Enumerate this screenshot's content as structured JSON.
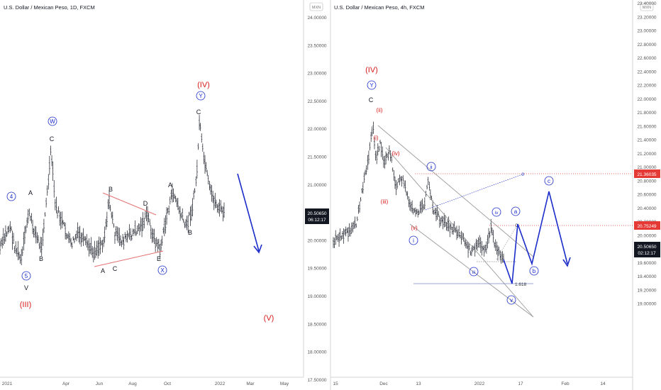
{
  "left_chart": {
    "title": "U.S. Dollar / Mexican Peso, 1D, FXCM",
    "y_ticks": [
      "24.00000",
      "23.50000",
      "23.00000",
      "22.50000",
      "22.00000",
      "21.50000",
      "21.00000",
      "20.50000",
      "20.00000",
      "19.50000",
      "19.00000",
      "18.50000",
      "18.00000",
      "17.50000"
    ],
    "x_ticks": [
      "2021",
      "Apr",
      "Jun",
      "Aug",
      "Oct",
      "2022",
      "Mar",
      "May"
    ],
    "price_badge": {
      "value": "20.50650",
      "time": "06:12:17"
    },
    "currency_badge": "MXN",
    "labels": {
      "w4": "4",
      "w5": "5",
      "wV": "V",
      "wIII": "(III)",
      "A1": "A",
      "B1": "B",
      "C1": "C",
      "W": "W",
      "B2": "B",
      "D": "D",
      "A2": "A",
      "C2": "C",
      "E": "E",
      "X": "X",
      "A3": "A",
      "B3": "B",
      "C3": "C",
      "Y": "Y",
      "IV": "(IV)",
      "V": "(V)"
    }
  },
  "right_chart": {
    "title": "U.S. Dollar / Mexican Peso, 4h, FXCM",
    "y_ticks": [
      "23.40000",
      "23.20000",
      "23.00000",
      "22.80000",
      "22.60000",
      "22.40000",
      "22.20000",
      "22.00000",
      "21.80000",
      "21.60000",
      "21.40000",
      "21.20000",
      "21.00000",
      "20.80000",
      "20.60000",
      "20.40000",
      "20.20000",
      "20.00000",
      "19.80000",
      "19.60000",
      "19.40000",
      "19.20000",
      "19.00000"
    ],
    "x_ticks": [
      "15",
      "Dec",
      "13",
      "2022",
      "17",
      "Feb",
      "14"
    ],
    "currency_badge": "MXN",
    "price_badges": [
      {
        "value": "21.36035",
        "color": "#e53935"
      },
      {
        "value": "20.75249",
        "color": "#e53935"
      },
      {
        "value": "20.50650",
        "time": "02:12:17",
        "color": "#131722"
      }
    ],
    "level_labels": {
      "zero1": "0",
      "zero2": "0",
      "fib": "1.618"
    },
    "labels": {
      "IV": "(IV)",
      "Y": "Y",
      "C": "C",
      "ii_r": "(ii)",
      "i_r": "(i)",
      "iii_r": "(iii)",
      "iv_r": "(iv)",
      "v_r": "(v)",
      "i": "i",
      "ii": "ii",
      "iii": "iii",
      "iv": "iv",
      "v": "v",
      "a": "a",
      "b": "b",
      "c": "c"
    }
  },
  "colors": {
    "red": "#d81b1b",
    "blue": "#1b2cc9",
    "bars": "#131722",
    "trend": "#e57373",
    "channel": "#9a9a9a"
  }
}
